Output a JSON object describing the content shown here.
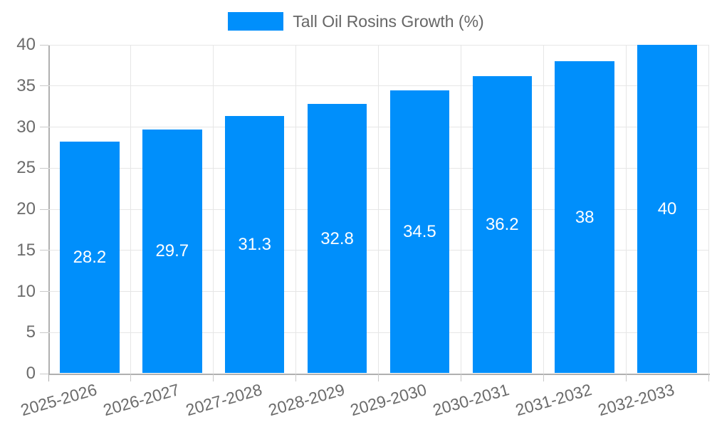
{
  "chart_data": {
    "type": "bar",
    "title": "",
    "xlabel": "",
    "ylabel": "",
    "legend": {
      "position": "top",
      "label": "Tall Oil Rosins Growth (%)"
    },
    "categories": [
      "2025-2026",
      "2026-2027",
      "2027-2028",
      "2028-2029",
      "2029-2030",
      "2030-2031",
      "2031-2032",
      "2032-2033"
    ],
    "values": [
      28.2,
      29.7,
      31.3,
      32.8,
      34.5,
      36.2,
      38,
      40
    ],
    "value_labels": [
      "28.2",
      "29.7",
      "31.3",
      "32.8",
      "34.5",
      "36.2",
      "38",
      "40"
    ],
    "ylim": [
      0,
      40
    ],
    "ytick_step": 5,
    "grid": true
  },
  "colors": {
    "bar": "#008FFB",
    "grid": "#e6e6e6",
    "axis": "#b0b0b0",
    "tick": "#c9c9c9",
    "axis_label": "#6b6b6b",
    "value_label": "#ffffff",
    "legend_text": "#666666"
  }
}
